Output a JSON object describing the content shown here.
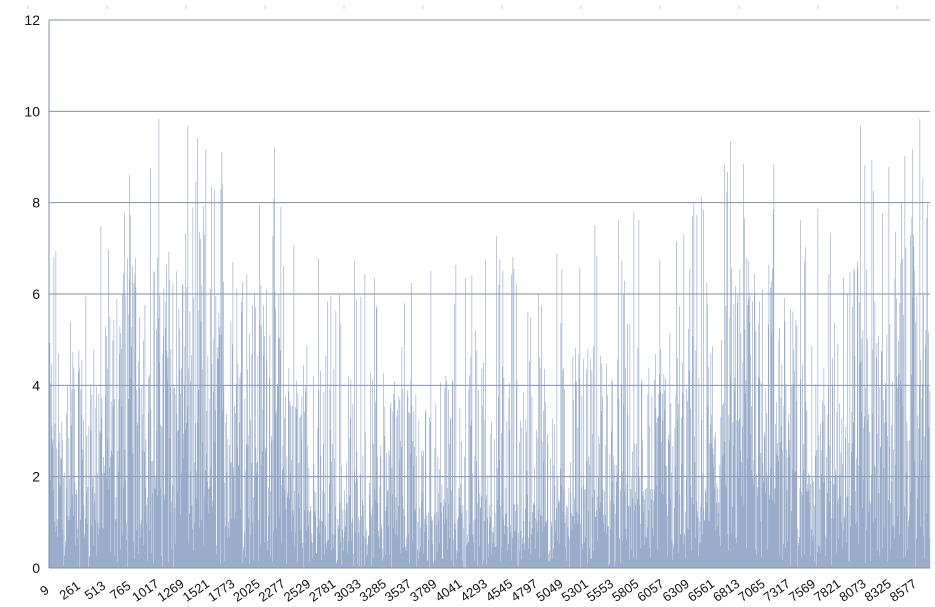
{
  "chart_data": {
    "type": "bar",
    "title": "",
    "xlabel": "",
    "ylabel": "",
    "ylim": [
      0,
      12
    ],
    "yticks": [
      0,
      2,
      4,
      6,
      8,
      10,
      12
    ],
    "grid": "horizontal",
    "legend": "none",
    "bar_color": "#8ea3c4",
    "gridline_color": "#7f8fa6",
    "x_tick_labels": [
      "9",
      "261",
      "513",
      "765",
      "1017",
      "1269",
      "1521",
      "1773",
      "2025",
      "2277",
      "2529",
      "2781",
      "3033",
      "3285",
      "3537",
      "3789",
      "4041",
      "4293",
      "4545",
      "4797",
      "5049",
      "5301",
      "5553",
      "5805",
      "6057",
      "6309",
      "6561",
      "6813",
      "7065",
      "7317",
      "7569",
      "7821",
      "8073",
      "8325",
      "8577"
    ],
    "x_start": 9,
    "x_step": 252,
    "x_end": 8800,
    "series_profile": {
      "description_units": "typical low value / typical peak value (data units) per x-range",
      "x": [
        9,
        261,
        513,
        765,
        1017,
        1269,
        1521,
        1773,
        2025,
        2277,
        2529,
        2781,
        3033,
        3285,
        3537,
        3789,
        4041,
        4293,
        4545,
        4797,
        5049,
        5301,
        5553,
        5805,
        6057,
        6309,
        6561,
        6813,
        7065,
        7317,
        7569,
        7821,
        8073,
        8325,
        8577,
        8800
      ],
      "base": [
        2.2,
        2.0,
        2.0,
        3.8,
        3.6,
        3.9,
        3.0,
        4.0,
        3.6,
        3.2,
        1.5,
        1.4,
        1.4,
        1.5,
        1.5,
        1.4,
        1.4,
        1.5,
        1.6,
        1.6,
        1.7,
        1.8,
        1.8,
        1.7,
        1.8,
        2.0,
        2.0,
        3.0,
        4.2,
        3.5,
        2.2,
        2.0,
        4.0,
        3.0,
        3.8,
        4.2
      ],
      "peak": [
        7.7,
        7.5,
        7.8,
        9.8,
        10.2,
        9.8,
        9.6,
        10.2,
        9.0,
        9.5,
        7.3,
        7.0,
        7.2,
        7.2,
        7.4,
        7.3,
        7.0,
        7.6,
        7.6,
        7.8,
        7.9,
        7.9,
        7.9,
        7.9,
        7.6,
        7.8,
        8.5,
        9.8,
        10.1,
        9.0,
        7.8,
        8.0,
        10.6,
        8.5,
        10.5,
        10.0
      ]
    }
  }
}
